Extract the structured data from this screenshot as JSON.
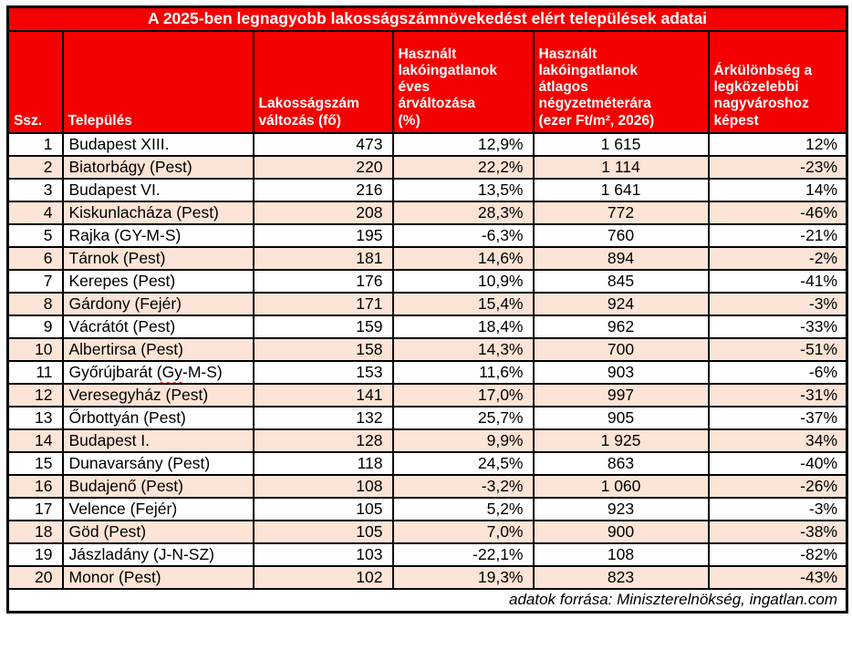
{
  "colors": {
    "header_bg": "#f40000",
    "header_text": "#ffffff",
    "stripe_bg": "#fce4d6",
    "border": "#000000",
    "squiggle": "#ff2a2a"
  },
  "chart_data": {
    "type": "table",
    "title": "A 2025-ben legnagyobb lakosságszámnövekedést elért települések adatai",
    "columns": [
      "Ssz.",
      "Település",
      "Lakosságszám\nváltozás (fő)",
      "Használt\nlakóingatlanok\néves\nárváltozása\n(%)",
      "Használt\nlakóingatlanok\nátlagos\nnégyzetméterára\n(ezer Ft/m², 2026)",
      "Árkülönbség a\nlegközelebbi\nnagyvároshoz\nképest"
    ],
    "rows": [
      {
        "n": "1",
        "name": "Budapest XIII.",
        "pop": "473",
        "change": "12,9%",
        "price": "1 615",
        "diff": "12%"
      },
      {
        "n": "2",
        "name": "Biatorbágy (Pest)",
        "pop": "220",
        "change": "22,2%",
        "price": "1 114",
        "diff": "-23%"
      },
      {
        "n": "3",
        "name": "Budapest VI.",
        "pop": "216",
        "change": "13,5%",
        "price": "1 641",
        "diff": "14%"
      },
      {
        "n": "4",
        "name": "Kiskunlacháza (Pest)",
        "pop": "208",
        "change": "28,3%",
        "price": "772",
        "diff": "-46%"
      },
      {
        "n": "5",
        "name": "Rajka (GY-M-S)",
        "pop": "195",
        "change": "-6,3%",
        "price": "760",
        "diff": "-21%"
      },
      {
        "n": "6",
        "name": "Tárnok (Pest)",
        "pop": "181",
        "change": "14,6%",
        "price": "894",
        "diff": "-2%"
      },
      {
        "n": "7",
        "name": "Kerepes (Pest)",
        "pop": "176",
        "change": "10,9%",
        "price": "845",
        "diff": "-41%"
      },
      {
        "n": "8",
        "name": "Gárdony (Fejér)",
        "pop": "171",
        "change": "15,4%",
        "price": "924",
        "diff": "-3%"
      },
      {
        "n": "9",
        "name": "Vácrátót (Pest)",
        "pop": "159",
        "change": "18,4%",
        "price": "962",
        "diff": "-33%"
      },
      {
        "n": "10",
        "name": "Albertirsa (Pest)",
        "pop": "158",
        "change": "14,3%",
        "price": "700",
        "diff": "-51%"
      },
      {
        "n": "11",
        "name": "Győrújbarát (Gy-M-S)",
        "pop": "153",
        "change": "11,6%",
        "price": "903",
        "diff": "-6%",
        "wavy": "(Gy"
      },
      {
        "n": "12",
        "name": "Veresegyház (Pest)",
        "pop": "141",
        "change": "17,0%",
        "price": "997",
        "diff": "-31%"
      },
      {
        "n": "13",
        "name": "Őrbottyán (Pest)",
        "pop": "132",
        "change": "25,7%",
        "price": "905",
        "diff": "-37%"
      },
      {
        "n": "14",
        "name": "Budapest I.",
        "pop": "128",
        "change": "9,9%",
        "price": "1 925",
        "diff": "34%"
      },
      {
        "n": "15",
        "name": "Dunavarsány (Pest)",
        "pop": "118",
        "change": "24,5%",
        "price": "863",
        "diff": "-40%"
      },
      {
        "n": "16",
        "name": "Budajenő (Pest)",
        "pop": "108",
        "change": "-3,2%",
        "price": "1 060",
        "diff": "-26%"
      },
      {
        "n": "17",
        "name": "Velence (Fejér)",
        "pop": "105",
        "change": "5,2%",
        "price": "923",
        "diff": "-3%"
      },
      {
        "n": "18",
        "name": "Göd (Pest)",
        "pop": "105",
        "change": "7,0%",
        "price": "900",
        "diff": "-38%"
      },
      {
        "n": "19",
        "name": "Jászladány (J-N-SZ)",
        "pop": "103",
        "change": "-22,1%",
        "price": "108",
        "diff": "-82%"
      },
      {
        "n": "20",
        "name": "Monor (Pest)",
        "pop": "102",
        "change": "19,3%",
        "price": "823",
        "diff": "-43%"
      }
    ],
    "source": "adatok forrása: Miniszterelnökség, ingatlan.com"
  }
}
